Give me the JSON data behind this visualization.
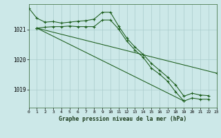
{
  "title": "Graphe pression niveau de la mer (hPa)",
  "background_color": "#cce8e8",
  "grid_color": "#aacccc",
  "line_color": "#1a5c1a",
  "ylim": [
    1018.4,
    1021.85
  ],
  "xlim": [
    0,
    23
  ],
  "yticks": [
    1019,
    1020,
    1021
  ],
  "xticks": [
    0,
    1,
    2,
    3,
    4,
    5,
    6,
    7,
    8,
    9,
    10,
    11,
    12,
    13,
    14,
    15,
    16,
    17,
    18,
    19,
    20,
    21,
    22,
    23
  ],
  "line1": [
    1021.72,
    1021.38,
    1021.25,
    1021.27,
    1021.22,
    1021.25,
    1021.28,
    1021.3,
    1021.35,
    1021.58,
    1021.58,
    1021.12,
    1020.72,
    1020.42,
    1020.18,
    1019.88,
    1019.65,
    1019.42,
    1019.15,
    1018.78,
    1018.88,
    1018.82,
    1018.8
  ],
  "line2_x": [
    1,
    2,
    3,
    4,
    5,
    6,
    7,
    8,
    9,
    10,
    11,
    12,
    13,
    14,
    15,
    16,
    17,
    18,
    19,
    20,
    21,
    22
  ],
  "line2_y": [
    1021.05,
    1021.08,
    1021.1,
    1021.1,
    1021.12,
    1021.1,
    1021.1,
    1021.1,
    1021.32,
    1021.32,
    1021.02,
    1020.62,
    1020.32,
    1020.08,
    1019.72,
    1019.52,
    1019.28,
    1018.92,
    1018.62,
    1018.72,
    1018.68,
    1018.68
  ],
  "line3_x": [
    1,
    23
  ],
  "line3_y": [
    1021.05,
    1019.55
  ],
  "line4_x": [
    1,
    19
  ],
  "line4_y": [
    1021.05,
    1018.62
  ]
}
